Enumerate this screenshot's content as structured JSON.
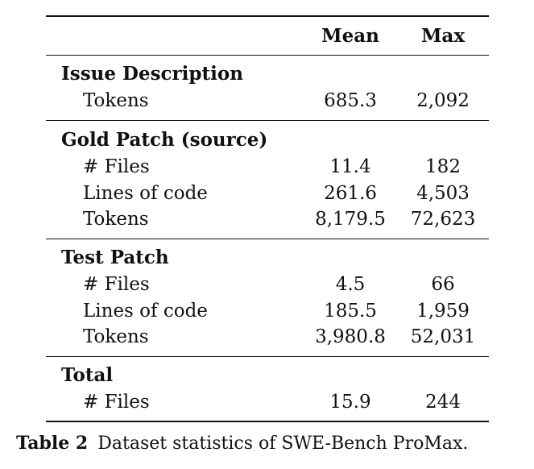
{
  "table": {
    "headers": {
      "mean": "Mean",
      "max": "Max"
    },
    "sections": [
      {
        "title": "Issue Description",
        "rows": [
          {
            "label": "Tokens",
            "mean": "685.3",
            "max": "2,092"
          }
        ]
      },
      {
        "title": "Gold Patch (source)",
        "rows": [
          {
            "label": "# Files",
            "mean": "11.4",
            "max": "182"
          },
          {
            "label": "Lines of code",
            "mean": "261.6",
            "max": "4,503"
          },
          {
            "label": "Tokens",
            "mean": "8,179.5",
            "max": "72,623"
          }
        ]
      },
      {
        "title": "Test Patch",
        "rows": [
          {
            "label": "# Files",
            "mean": "4.5",
            "max": "66"
          },
          {
            "label": "Lines of code",
            "mean": "185.5",
            "max": "1,959"
          },
          {
            "label": "Tokens",
            "mean": "3,980.8",
            "max": "52,031"
          }
        ]
      },
      {
        "title": "Total",
        "rows": [
          {
            "label": "# Files",
            "mean": "15.9",
            "max": "244"
          }
        ]
      }
    ]
  },
  "caption": {
    "number": "Table 2",
    "text": "Dataset statistics of SWE-Bench ProMax."
  }
}
